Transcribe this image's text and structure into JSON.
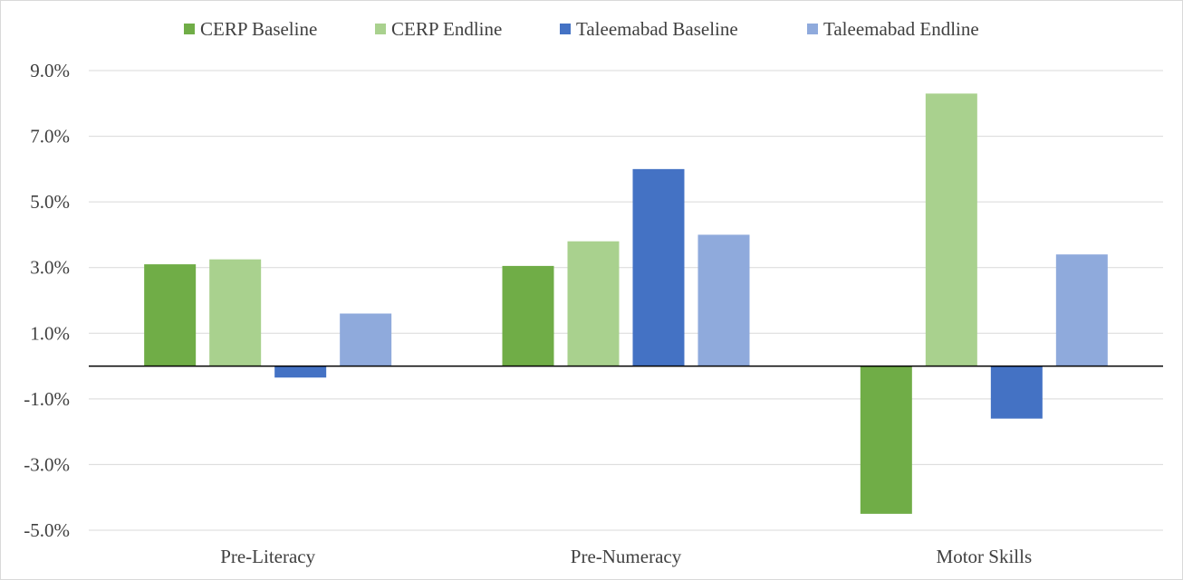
{
  "chart_data": {
    "type": "bar",
    "categories": [
      "Pre-Literacy",
      "Pre-Numeracy",
      "Motor Skills"
    ],
    "series": [
      {
        "name": "CERP Baseline",
        "color": "#70ad47",
        "values": [
          3.1,
          3.05,
          -4.5
        ]
      },
      {
        "name": "CERP Endline",
        "color": "#a9d18e",
        "values": [
          3.25,
          3.8,
          8.3
        ]
      },
      {
        "name": "Taleemabad Baseline",
        "color": "#4472c4",
        "values": [
          -0.35,
          6.0,
          -1.6
        ]
      },
      {
        "name": "Taleemabad Endline",
        "color": "#8faadc",
        "values": [
          1.6,
          4.0,
          3.4
        ]
      }
    ],
    "ylim": [
      -5.0,
      9.0
    ],
    "y_ticks": [
      9.0,
      7.0,
      5.0,
      3.0,
      1.0,
      -1.0,
      -3.0,
      -5.0
    ],
    "y_tick_labels": [
      "9.0%",
      "7.0%",
      "5.0%",
      "3.0%",
      "1.0%",
      "-1.0%",
      "-3.0%",
      "-5.0%"
    ],
    "unit": "%",
    "grid": true,
    "legend_position": "top",
    "title": "",
    "xlabel": "",
    "ylabel": ""
  }
}
